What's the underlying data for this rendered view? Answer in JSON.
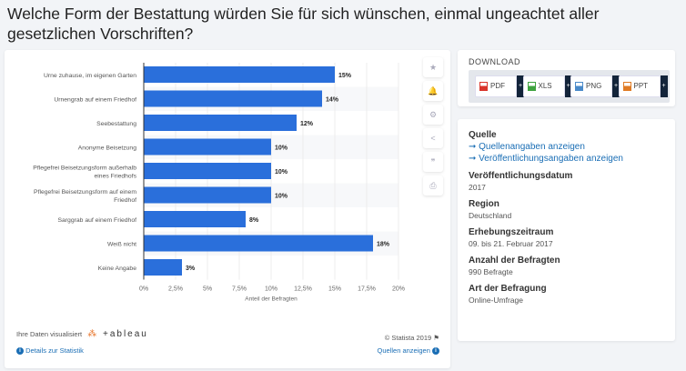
{
  "title": "Welche Form der Bestattung würden Sie für sich wünschen, einmal ungeachtet aller gesetzlichen Vorschriften?",
  "chart_data": {
    "type": "bar",
    "orientation": "horizontal",
    "categories": [
      "Urne zuhause, im eigenen Garten",
      "Urnengrab auf einem Friedhof",
      "Seebestattung",
      "Anonyme Beisetzung",
      "Pflegefrei Beisetzungsform außerhalb eines Friedhofs",
      "Pflegefrei Beisetzungsform auf einem Friedhof",
      "Sarggrab auf einem Friedhof",
      "Weiß nicht",
      "Keine Angabe"
    ],
    "values": [
      15,
      14,
      12,
      10,
      10,
      10,
      8,
      18,
      3
    ],
    "data_labels": [
      "15%",
      "14%",
      "12%",
      "10%",
      "10%",
      "10%",
      "8%",
      "18%",
      "3%"
    ],
    "xlabel": "Anteil der Befragten",
    "xlim": [
      0,
      20
    ],
    "xticks": [
      "0%",
      "2,5%",
      "5%",
      "7,5%",
      "10%",
      "12,5%",
      "15%",
      "17,5%",
      "20%"
    ],
    "bar_color": "#2a6fdb",
    "grid": true
  },
  "tools": [
    "star-icon",
    "bell-icon",
    "gear-icon",
    "share-icon",
    "quote-icon",
    "print-icon"
  ],
  "footer": {
    "tableau_label": "Ihre Daten visualisiert",
    "tableau_logo": "+ableau",
    "copyright": "© Statista 2019",
    "details": "Details zur Statistik",
    "sources": "Quellen anzeigen"
  },
  "download": {
    "title": "DOWNLOAD",
    "buttons": [
      {
        "label": "PDF",
        "color": "#d9342b"
      },
      {
        "label": "XLS",
        "color": "#3fa33f"
      },
      {
        "label": "PNG",
        "color": "#4a8ac9"
      },
      {
        "label": "PPT",
        "color": "#e07b24"
      }
    ],
    "plus": "+"
  },
  "info": {
    "source_title": "Quelle",
    "source_link1": "➞ Quellenangaben anzeigen",
    "source_link2": "➞ Veröffentlichungsangaben anzeigen",
    "pub_date_title": "Veröffentlichungsdatum",
    "pub_date": "2017",
    "region_title": "Region",
    "region": "Deutschland",
    "period_title": "Erhebungszeitraum",
    "period": "09. bis 21. Februar 2017",
    "count_title": "Anzahl der Befragten",
    "count": "990 Befragte",
    "type_title": "Art der Befragung",
    "type": "Online-Umfrage"
  }
}
